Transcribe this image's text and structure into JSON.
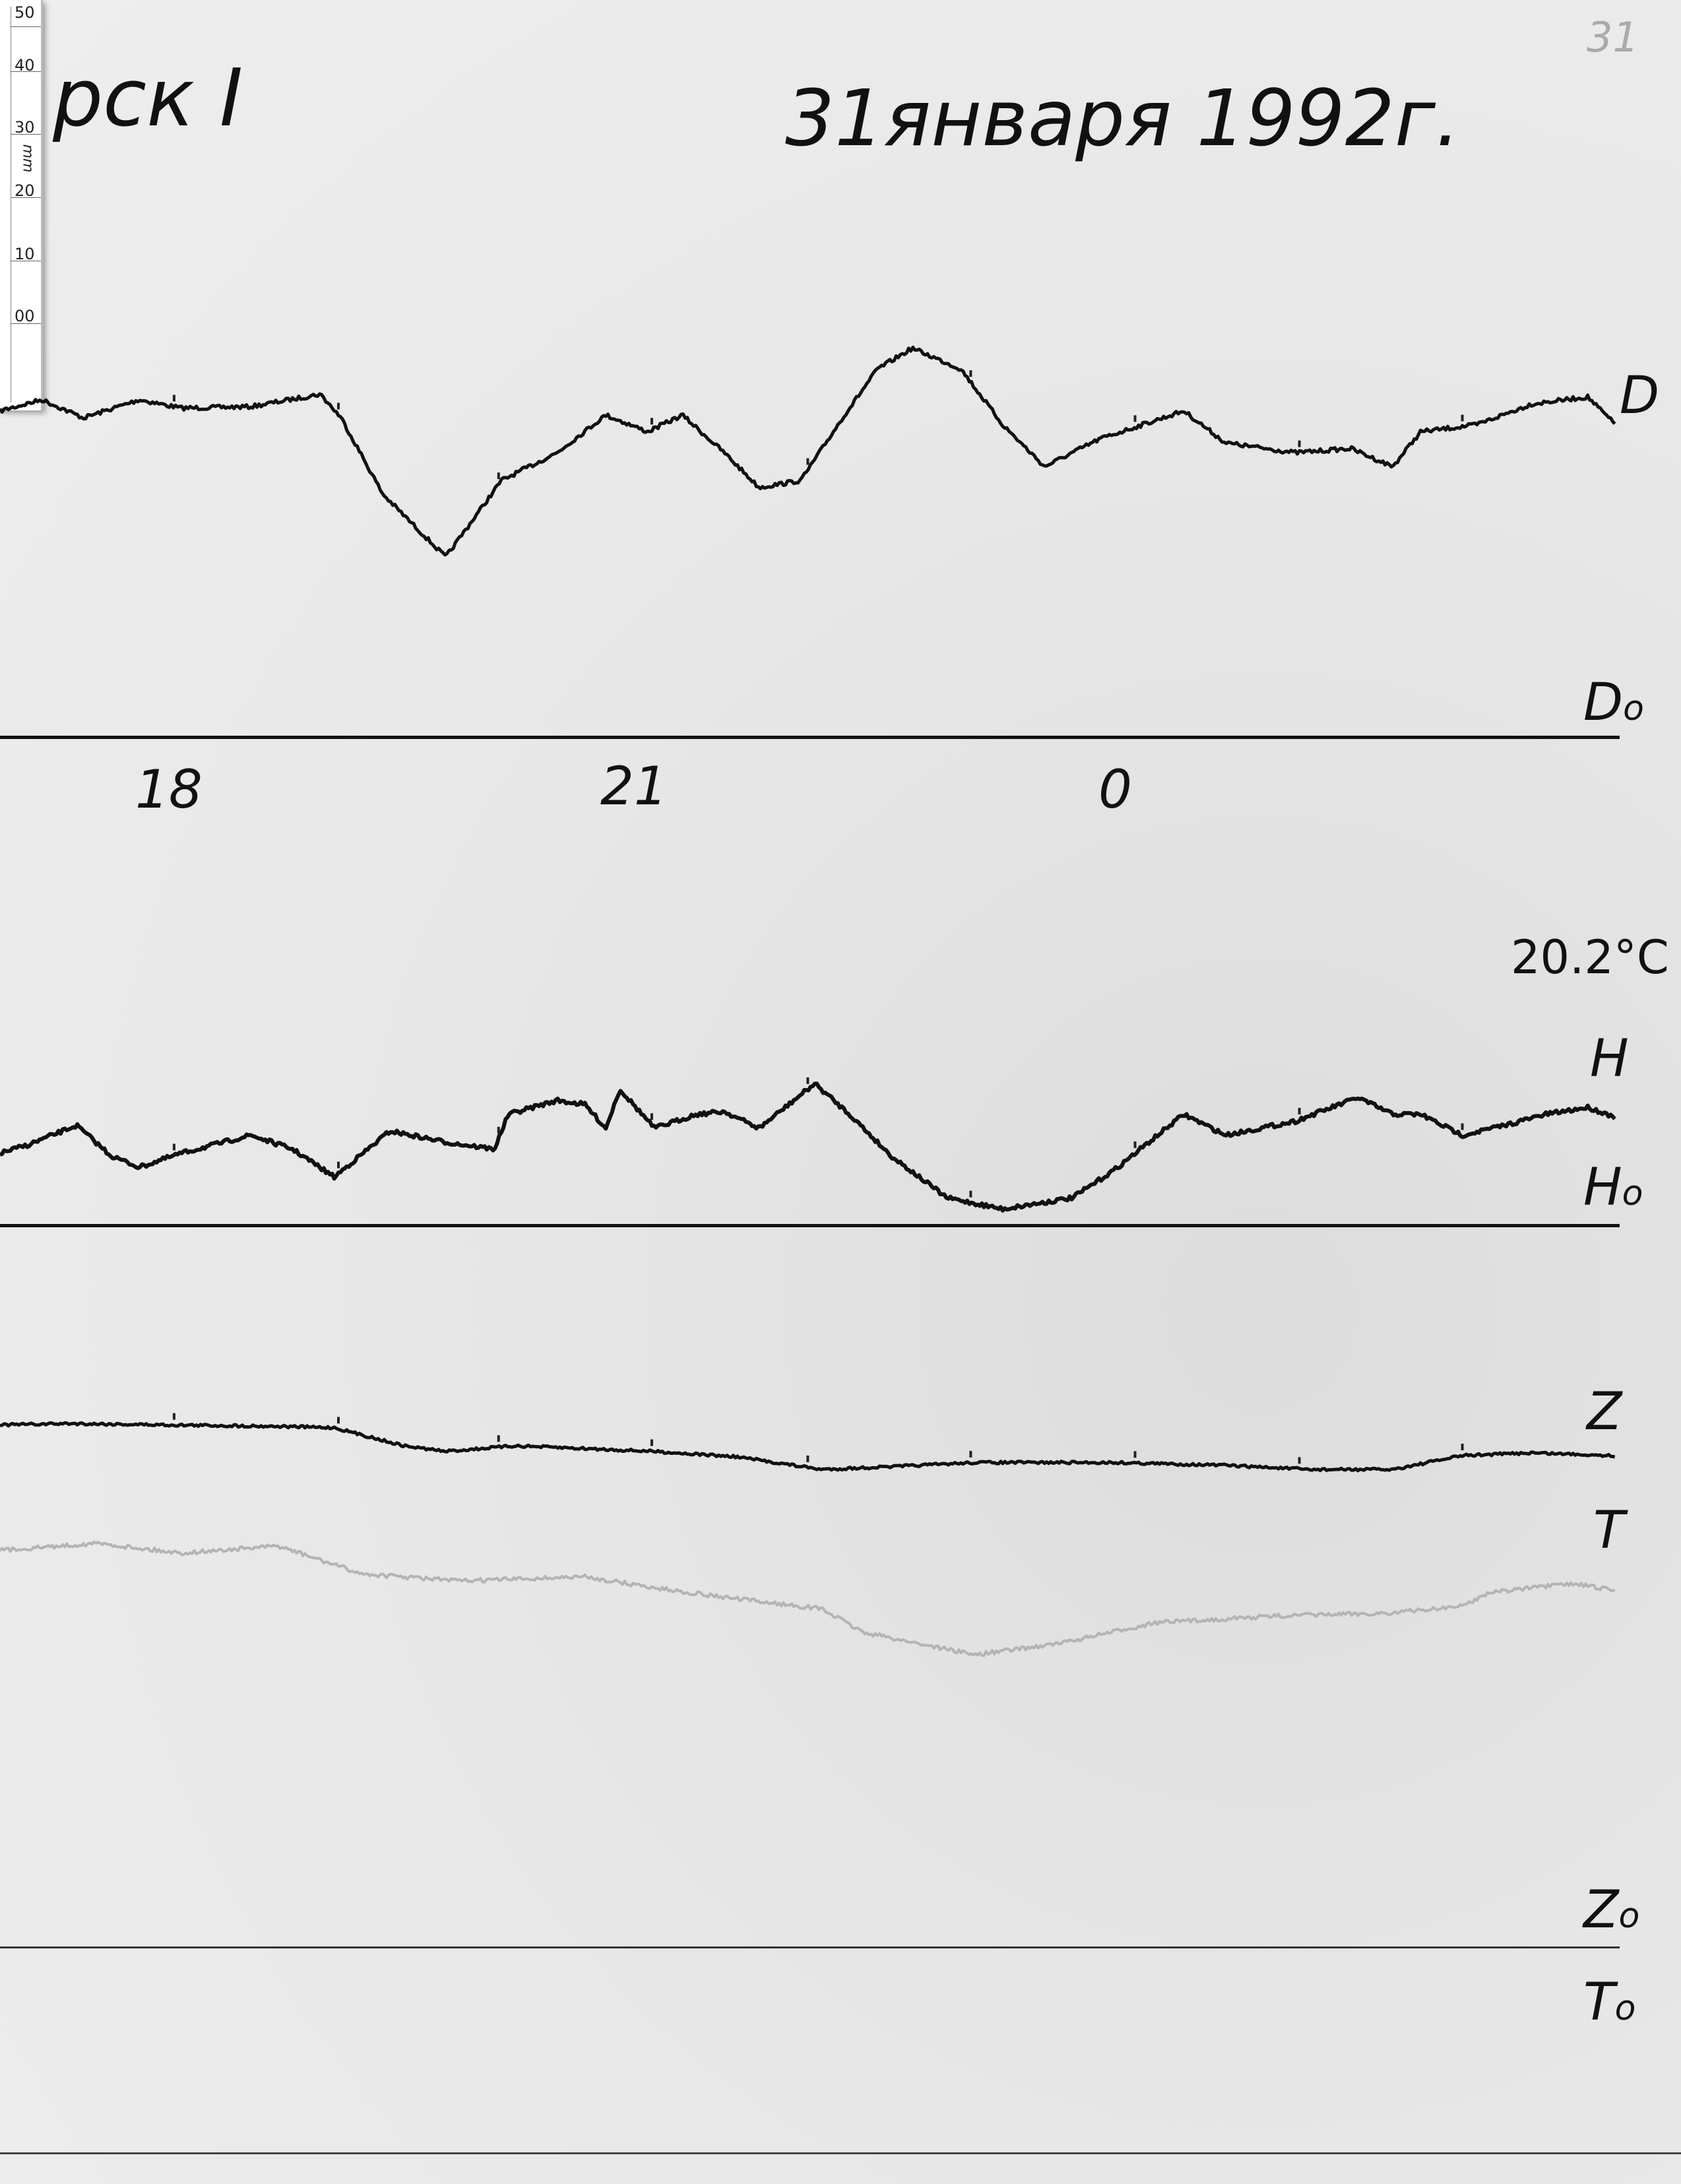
{
  "header": {
    "station": "рск I",
    "date": "31января 1992г.",
    "page_number": "31"
  },
  "ruler": {
    "unit": "mm",
    "ticks": [
      "50",
      "40",
      "30",
      "20",
      "10",
      "00"
    ]
  },
  "hour_labels": [
    "18",
    "21",
    "0"
  ],
  "temperature": "20.2°C",
  "traces": {
    "D": {
      "label": "D",
      "baseline_label": "D",
      "baseline_sub": "o"
    },
    "H": {
      "label": "H",
      "baseline_label": "H",
      "baseline_sub": "o"
    },
    "Z": {
      "label": "Z",
      "baseline_label": "Z",
      "baseline_sub": "o"
    },
    "T": {
      "label": "T",
      "baseline_label": "T",
      "baseline_sub": "o"
    }
  },
  "colors": {
    "paper": "#eeeeee",
    "ink": "#111111",
    "temperature_trace": "#b4b4b4"
  }
}
